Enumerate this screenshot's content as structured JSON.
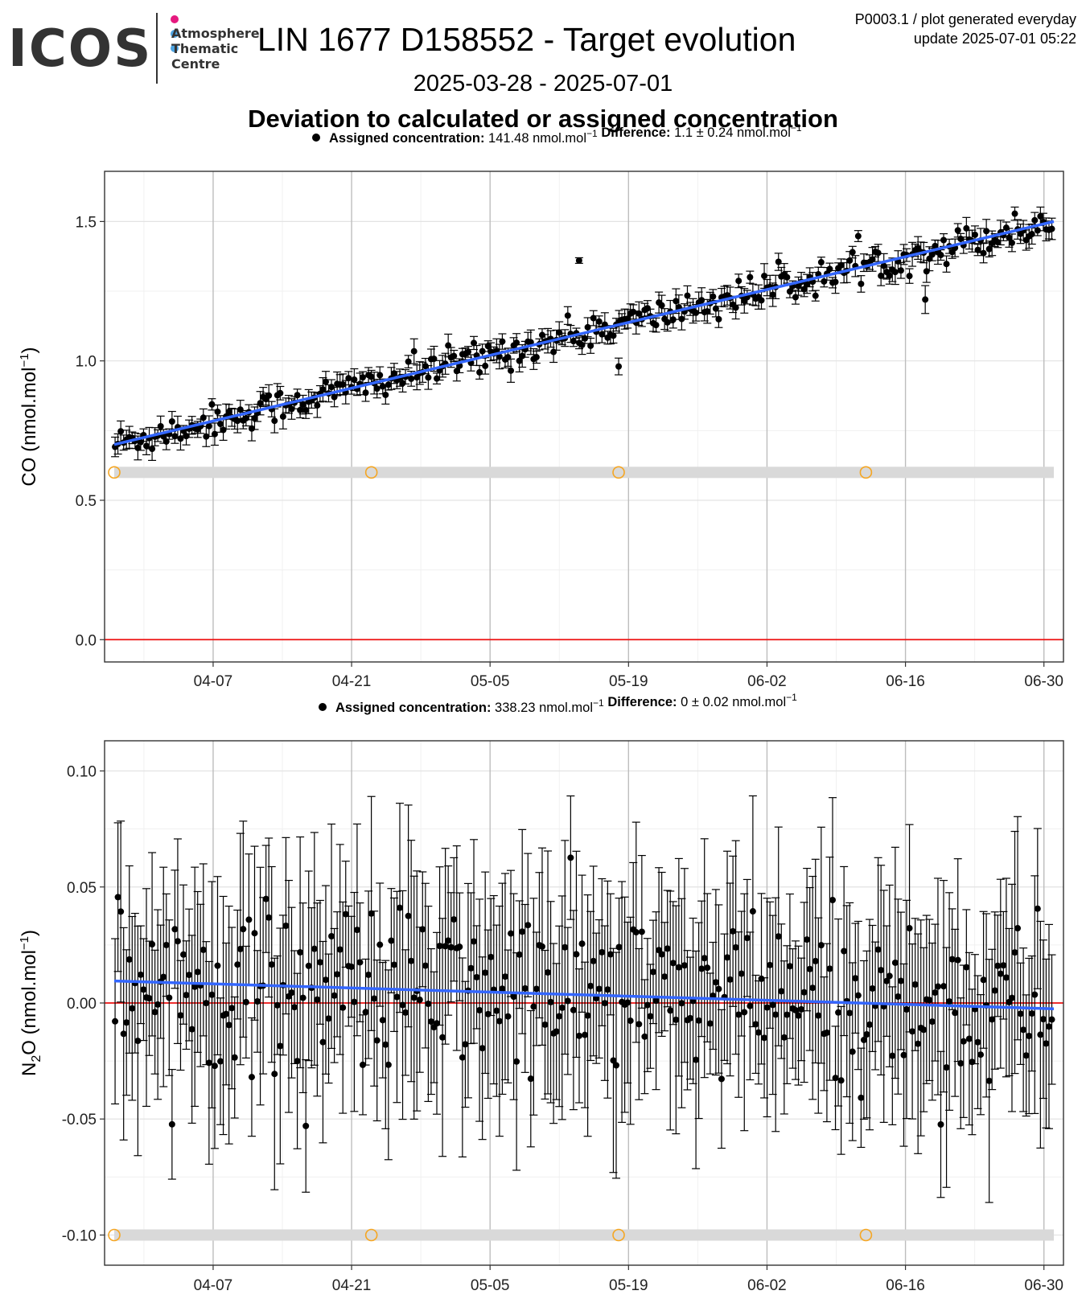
{
  "logo": {
    "wordmark": "ICOS",
    "sub_lines": [
      "Atmosphere",
      "Thematic",
      "Centre"
    ],
    "dot_colors": [
      "#e6197f",
      "#4da3e0",
      "#4da3e0"
    ]
  },
  "header": {
    "title": "LIN 1677 D158552 - Target evolution",
    "meta_line1": "P0003.1 / plot generated everyday",
    "meta_line2": "update  2025-07-01 05:22",
    "date_range": "2025-03-28 - 2025-07-01",
    "subtitle": "Deviation to calculated or assigned concentration"
  },
  "colors": {
    "points": "#000000",
    "trend": "#3366ff",
    "zero_line": "#ee1111",
    "calib_band": "#d9d9d9",
    "calib_marker": "#f5a623"
  },
  "chart_data": [
    {
      "type": "scatter",
      "legend": {
        "label_bold": "Assigned concentration:",
        "label_value": " 141.48 nmol.mol",
        "label_sup": "−1",
        "diff_bold": "Difference:",
        "diff_value": " 1.1 ± 0.24 nmol.mol",
        "diff_sup": "−1"
      },
      "ylabel": "CO (nmol.mol",
      "ylabel_sup": "−1",
      "ylabel_sub": "",
      "ylabel_prefix": "CO",
      "ylim": [
        -0.08,
        1.68
      ],
      "yticks": [
        0.0,
        0.5,
        1.0,
        1.5
      ],
      "ytick_labels": [
        "0.0",
        "0.5",
        "1.0",
        "1.5"
      ],
      "x_start": "2025-03-28",
      "x_end": "2025-07-01",
      "xticks": [
        "04-07",
        "04-21",
        "05-05",
        "05-19",
        "06-02",
        "06-16",
        "06-30"
      ],
      "xtick_dates": [
        "2025-04-07",
        "2025-04-21",
        "2025-05-05",
        "2025-05-19",
        "2025-06-02",
        "2025-06-16",
        "2025-06-30"
      ],
      "trend": {
        "start": [
          "2025-03-28",
          0.7
        ],
        "end": [
          "2025-07-01",
          1.5
        ]
      },
      "calibration_level": 0.6,
      "calibration_dates": [
        "2025-03-28",
        "2025-04-23",
        "2025-05-18",
        "2025-06-12"
      ],
      "outliers": [
        {
          "x": "2025-05-14",
          "y": 1.36,
          "err": 0.01
        },
        {
          "x": "2025-06-18",
          "y": 1.22,
          "err": 0.05
        },
        {
          "x": "2025-05-18",
          "y": 0.98,
          "err": 0.03
        }
      ],
      "noise_sd": 0.03,
      "error_bar": 0.03,
      "n_points": 330
    },
    {
      "type": "scatter",
      "legend": {
        "label_bold": "Assigned concentration:",
        "label_value": " 338.23 nmol.mol",
        "label_sup": "−1",
        "diff_bold": "Difference:",
        "diff_value": " 0 ± 0.02 nmol.mol",
        "diff_sup": "−1"
      },
      "ylabel": "O (nmol.mol",
      "ylabel_sup": "−1",
      "ylabel_sub": "2",
      "ylabel_prefix": "N",
      "ylim": [
        -0.113,
        0.113
      ],
      "yticks": [
        -0.1,
        -0.05,
        0.0,
        0.05,
        0.1
      ],
      "ytick_labels": [
        "-0.10",
        "-0.05",
        "0.00",
        "0.05",
        "0.10"
      ],
      "x_start": "2025-03-28",
      "x_end": "2025-07-01",
      "xticks": [
        "04-07",
        "04-21",
        "05-05",
        "05-19",
        "06-02",
        "06-16",
        "06-30"
      ],
      "xtick_dates": [
        "2025-04-07",
        "2025-04-21",
        "2025-05-05",
        "2025-05-19",
        "2025-06-02",
        "2025-06-16",
        "2025-06-30"
      ],
      "trend": {
        "start": [
          "2025-03-28",
          0.0095
        ],
        "end": [
          "2025-07-01",
          -0.0025
        ]
      },
      "calibration_level": -0.1,
      "calibration_dates": [
        "2025-03-28",
        "2025-04-23",
        "2025-05-18",
        "2025-06-12"
      ],
      "outliers": [],
      "noise_sd": 0.018,
      "error_bar": 0.035,
      "n_points": 330
    }
  ]
}
